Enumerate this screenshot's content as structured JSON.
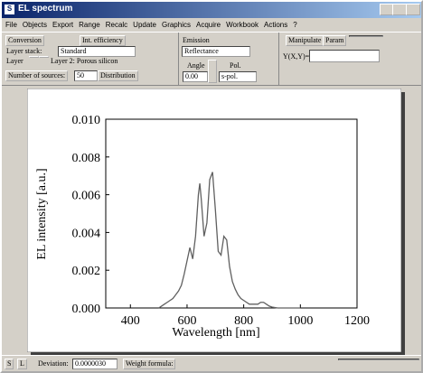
{
  "window": {
    "title": "EL spectrum"
  },
  "menu": [
    "File",
    "Objects",
    "Export",
    "Range",
    "Recalc",
    "Update",
    "Graphics",
    "Acquire",
    "Workbook",
    "Actions",
    "?"
  ],
  "toolbar": {
    "conversion": "Conversion",
    "int_efficiency": "Int. efficiency",
    "layer_stack_label": "Layer stack:",
    "layer_stack_value": "Standard",
    "layer_label": "Layer",
    "layer_value": "Layer 2: Porous silicon",
    "sources_button": "Number of sources:",
    "sources_value": "50",
    "distribution": "Distribution",
    "emission_label": "Emission",
    "emission_value": "Reflectance",
    "angle_label": "Angle",
    "angle_value": "0.00",
    "pol_label": "Pol.",
    "pol_value": "s-pol.",
    "manipulate": "Manipulate",
    "param": "Param",
    "formula_label": "Y(X,Y)="
  },
  "chart_data": {
    "type": "line",
    "xlabel": "Wavelength [nm]",
    "ylabel": "EL intensity [a.u.]",
    "color": "#606060",
    "x": [
      500,
      510,
      520,
      530,
      540,
      550,
      560,
      570,
      580,
      590,
      600,
      610,
      620,
      630,
      640,
      645,
      650,
      660,
      670,
      680,
      690,
      700,
      710,
      720,
      730,
      740,
      750,
      760,
      770,
      780,
      790,
      800,
      810,
      820,
      830,
      840,
      850,
      860,
      870,
      880,
      890,
      900,
      920,
      950,
      1000
    ],
    "values": [
      0,
      0.0001,
      0.0002,
      0.0003,
      0.0004,
      0.0005,
      0.0007,
      0.0009,
      0.0012,
      0.0018,
      0.0025,
      0.0032,
      0.0026,
      0.0038,
      0.006,
      0.0066,
      0.0058,
      0.0038,
      0.0045,
      0.0068,
      0.0072,
      0.0052,
      0.003,
      0.0028,
      0.0038,
      0.0036,
      0.0022,
      0.0014,
      0.001,
      0.0007,
      0.0005,
      0.0004,
      0.0003,
      0.0002,
      0.0002,
      0.0002,
      0.0002,
      0.0003,
      0.0003,
      0.0002,
      0.0001,
      5e-05,
      0,
      0,
      0
    ],
    "xlim": [
      313,
      1200
    ],
    "ylim": [
      0,
      0.01
    ],
    "xticks": [
      400,
      600,
      800,
      1000,
      1200
    ],
    "yticks": [
      {
        "value": 0,
        "label": "0.000"
      },
      {
        "value": 0.002,
        "label": "0.002"
      },
      {
        "value": 0.004,
        "label": "0.004"
      },
      {
        "value": 0.006,
        "label": "0.006"
      },
      {
        "value": 0.008,
        "label": "0.008"
      },
      {
        "value": 0.01,
        "label": "0.010"
      }
    ]
  },
  "status_bar": {
    "s": "S",
    "l": "L",
    "deviation_label": "Deviation:",
    "deviation_value": "0.0000030",
    "weight_formula": "Weight formula:"
  }
}
